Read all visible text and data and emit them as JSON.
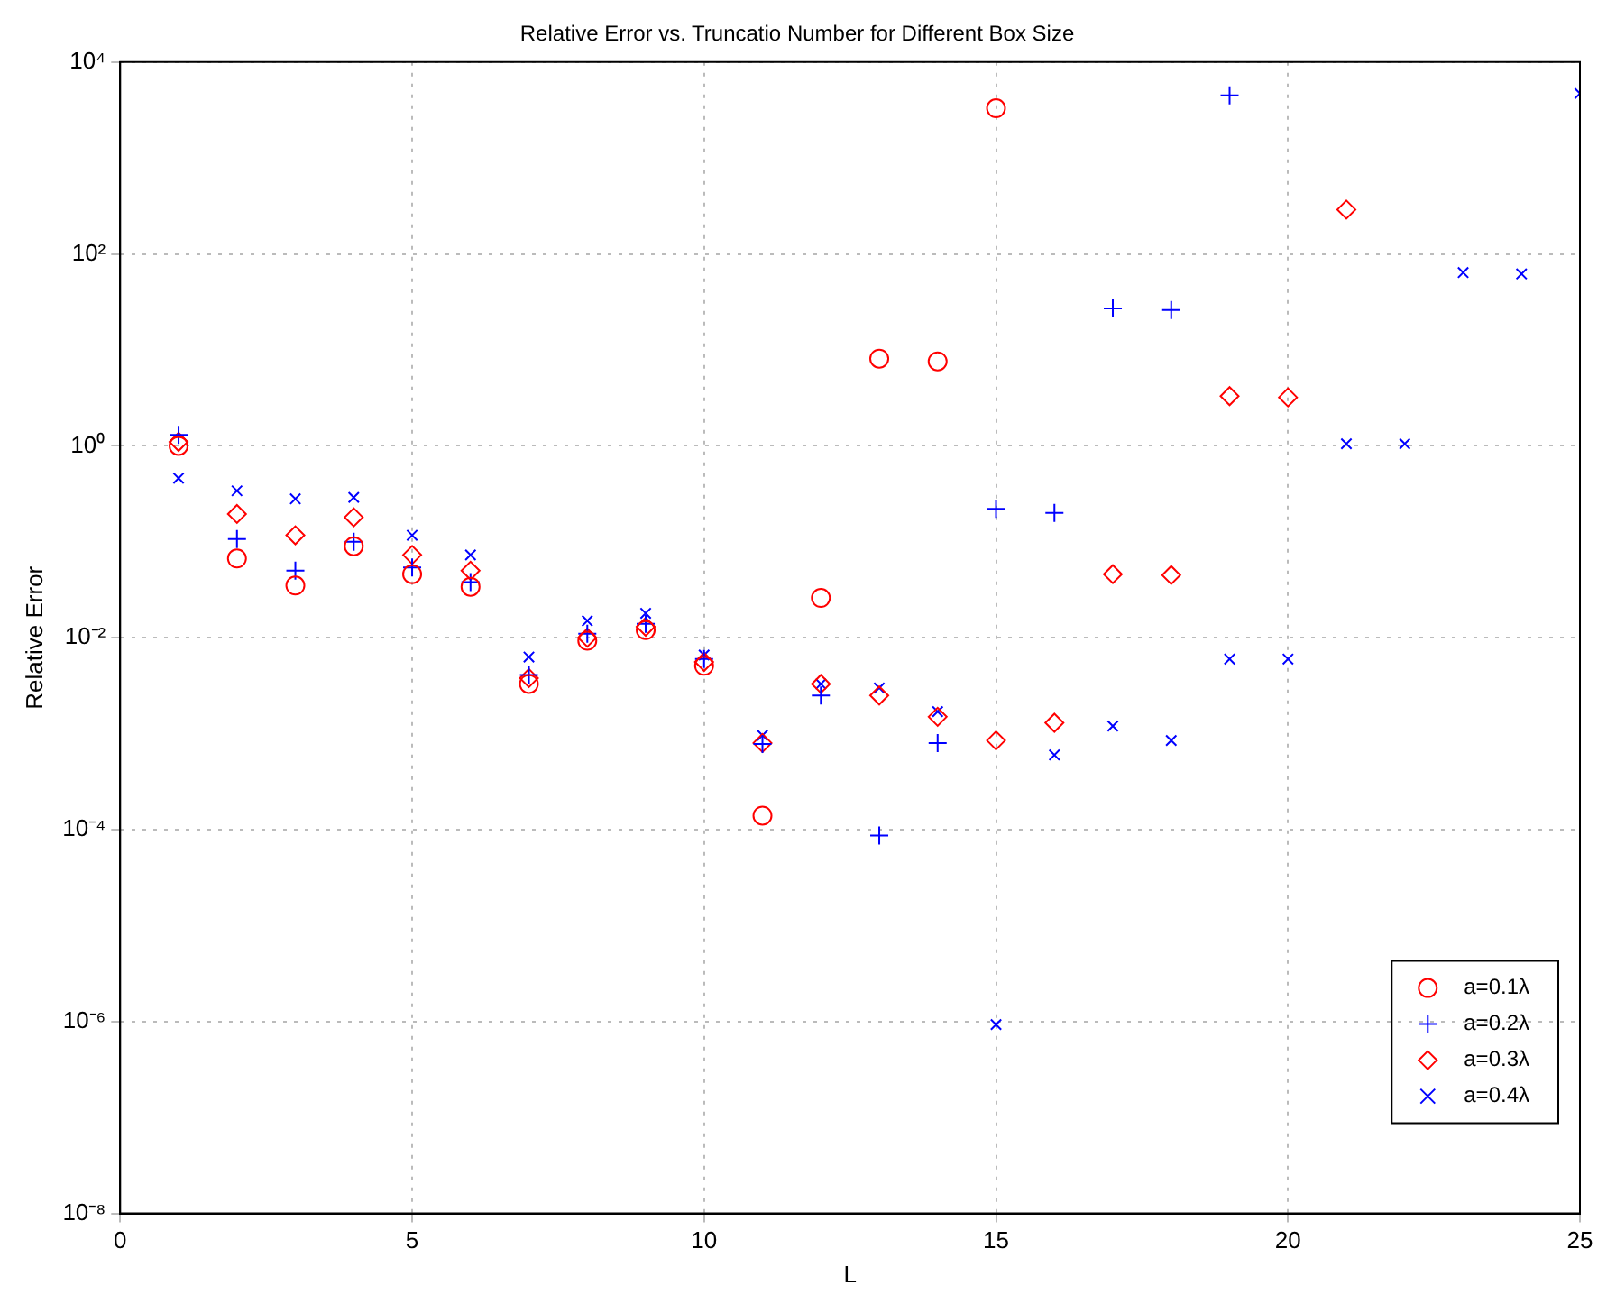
{
  "chart_data": {
    "type": "scatter",
    "title": "Relative Error vs. Truncatio Number for Different Box Size",
    "xlabel": "L",
    "ylabel": "Relative Error",
    "x": [
      1,
      2,
      3,
      4,
      5,
      6,
      7,
      8,
      9,
      10,
      11,
      12,
      13,
      14,
      15,
      16,
      17,
      18,
      19,
      20,
      21,
      22,
      23,
      24,
      25
    ],
    "series": [
      {
        "name": "a=0.1λ",
        "color": "#ff0000",
        "marker": "circle",
        "values": [
          1.0,
          0.067,
          0.035,
          0.09,
          0.046,
          0.034,
          0.0033,
          0.0093,
          0.012,
          0.0051,
          0.00014,
          0.026,
          8.1,
          7.6,
          3300,
          null,
          null,
          null,
          null,
          null,
          null,
          null,
          null,
          null,
          null
        ]
      },
      {
        "name": "a=0.2λ",
        "color": "#0000ff",
        "marker": "plus",
        "values": [
          1.3,
          0.107,
          0.05,
          0.1,
          0.054,
          0.038,
          0.0041,
          0.011,
          0.014,
          0.006,
          0.00078,
          0.0025,
          8.7e-05,
          0.0008,
          0.22,
          0.2,
          27,
          26,
          4500,
          null,
          null,
          null,
          null,
          null,
          null
        ]
      },
      {
        "name": "a=0.3λ",
        "color": "#ff0000",
        "marker": "diamond",
        "values": [
          1.1,
          0.195,
          0.117,
          0.18,
          0.073,
          0.05,
          0.0038,
          0.01,
          0.013,
          0.0056,
          0.0008,
          0.0033,
          0.0025,
          0.0015,
          0.00085,
          0.0013,
          0.046,
          0.045,
          3.3,
          3.2,
          290,
          null,
          null,
          null,
          null
        ]
      },
      {
        "name": "a=0.4λ",
        "color": "#0000ff",
        "marker": "cross",
        "values": [
          0.46,
          0.34,
          0.28,
          0.29,
          0.117,
          0.073,
          0.0063,
          0.015,
          0.018,
          0.0066,
          0.00096,
          0.0033,
          0.003,
          0.0017,
          9.3e-07,
          0.0006,
          0.0012,
          0.00085,
          0.006,
          0.006,
          1.05,
          1.05,
          64,
          62,
          4700
        ]
      }
    ],
    "xlim": [
      0,
      25
    ],
    "xticks": [
      0,
      5,
      10,
      15,
      20,
      25
    ],
    "ylim": [
      1e-08,
      10000
    ],
    "yticks": [
      {
        "value": 1e-08,
        "label": "10⁻⁸"
      },
      {
        "value": 1e-06,
        "label": "10⁻⁶"
      },
      {
        "value": 0.0001,
        "label": "10⁻⁴"
      },
      {
        "value": 0.01,
        "label": "10⁻²"
      },
      {
        "value": 1,
        "label": "10⁰"
      },
      {
        "value": 100,
        "label": "10²"
      },
      {
        "value": 10000,
        "label": "10⁴"
      }
    ],
    "log": "y",
    "grid": true,
    "legend": "bottom right"
  }
}
